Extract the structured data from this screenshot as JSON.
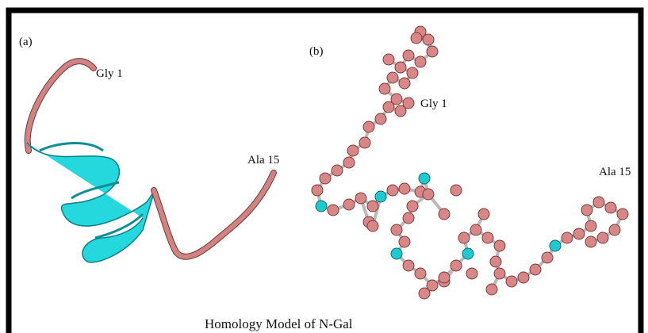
{
  "panel_a": {
    "label": "(a)",
    "start_label": "Gly 1",
    "end_label": "Ala 15"
  },
  "panel_b": {
    "label": "(b)",
    "start_label": "Gly 1",
    "end_label": "Ala 15"
  },
  "caption": "Homology Model of N-Gal"
}
